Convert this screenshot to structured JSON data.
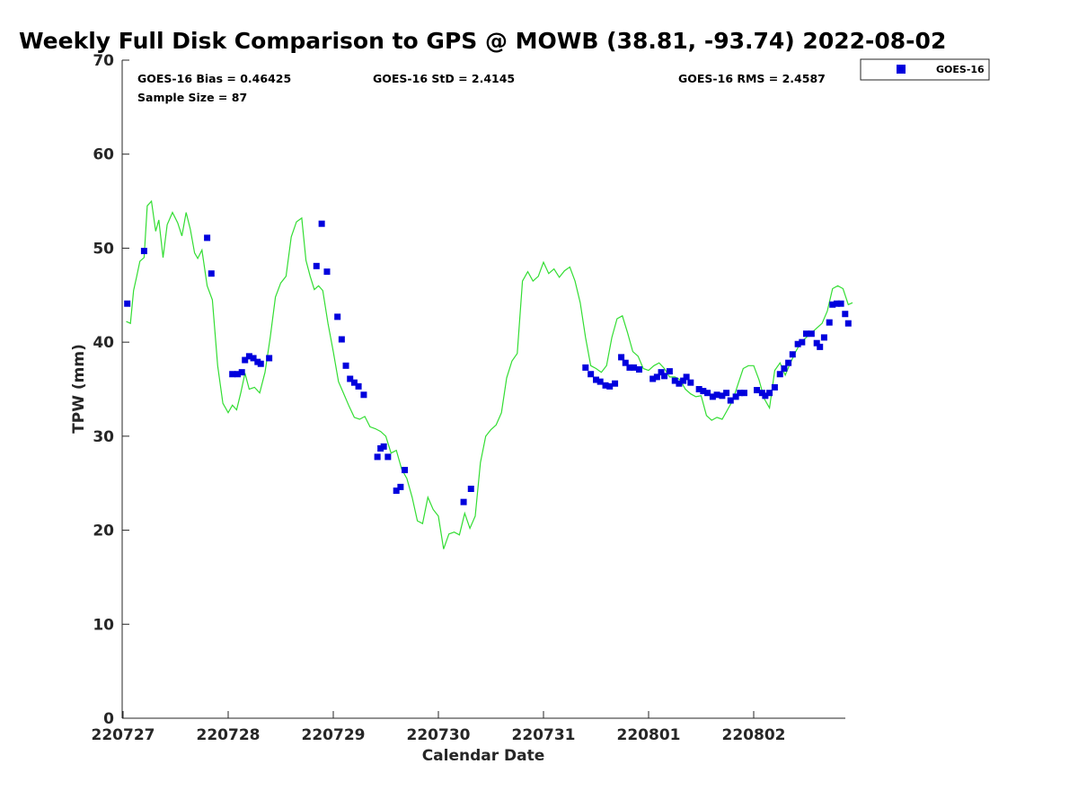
{
  "chart_data": {
    "type": "scatter",
    "title": "Weekly Full Disk Comparison to GPS @ MOWB (38.81, -93.74) 2022-08-02",
    "xlabel": "Calendar Date",
    "ylabel": "TPW (mm)",
    "xlim": [
      0,
      6.95
    ],
    "ylim": [
      0,
      70
    ],
    "x_unit": "days from 220727",
    "y_ticks": [
      0,
      10,
      20,
      30,
      40,
      50,
      60,
      70
    ],
    "x_ticks": [
      {
        "value": 0,
        "label": "220727"
      },
      {
        "value": 1,
        "label": "220728"
      },
      {
        "value": 2,
        "label": "220729"
      },
      {
        "value": 3,
        "label": "220730"
      },
      {
        "value": 4,
        "label": "220731"
      },
      {
        "value": 5,
        "label": "220801"
      },
      {
        "value": 6,
        "label": "220802"
      }
    ],
    "stats": {
      "bias": "GOES-16 Bias = 0.46425",
      "std": "GOES-16 StD = 2.4145",
      "rms": "GOES-16 RMS = 2.4587",
      "sample": "Sample Size = 87"
    },
    "legend": {
      "position": "top-right",
      "entries": [
        "GOES-16"
      ]
    },
    "colors": {
      "goes": "#0000dd",
      "gps": "#33dd33",
      "axis": "#262626"
    },
    "series": [
      {
        "name": "GOES-16",
        "marker": "square",
        "x": [
          0.04,
          0.2,
          0.8,
          0.84,
          1.04,
          1.09,
          1.13,
          1.16,
          1.2,
          1.24,
          1.28,
          1.31,
          1.39,
          1.84,
          1.89,
          1.94,
          2.04,
          2.08,
          2.12,
          2.16,
          2.2,
          2.24,
          2.29,
          2.42,
          2.45,
          2.48,
          2.52,
          2.6,
          2.64,
          2.68,
          3.24,
          3.31,
          4.4,
          4.45,
          4.5,
          4.54,
          4.59,
          4.63,
          4.68,
          4.74,
          4.78,
          4.82,
          4.86,
          4.91,
          5.04,
          5.08,
          5.12,
          5.15,
          5.2,
          5.25,
          5.29,
          5.33,
          5.36,
          5.4,
          5.48,
          5.52,
          5.56,
          5.61,
          5.65,
          5.7,
          5.74,
          5.78,
          5.83,
          5.87,
          5.91,
          6.03,
          6.08,
          6.11,
          6.15,
          6.2,
          6.25,
          6.29,
          6.33,
          6.37,
          6.42,
          6.46,
          6.5,
          6.55,
          6.6,
          6.63,
          6.67,
          6.72,
          6.75,
          6.79,
          6.83,
          6.87,
          6.9
        ],
        "y": [
          44.1,
          49.7,
          51.1,
          47.3,
          36.6,
          36.6,
          36.8,
          38.1,
          38.5,
          38.3,
          37.9,
          37.7,
          38.3,
          48.1,
          52.6,
          47.5,
          42.7,
          40.3,
          37.5,
          36.1,
          35.7,
          35.3,
          34.4,
          27.8,
          28.7,
          28.9,
          27.8,
          24.2,
          24.6,
          26.4,
          23.0,
          24.4,
          37.3,
          36.6,
          36.0,
          35.8,
          35.4,
          35.3,
          35.6,
          38.4,
          37.8,
          37.3,
          37.3,
          37.1,
          36.1,
          36.3,
          36.8,
          36.4,
          36.9,
          35.9,
          35.6,
          35.9,
          36.3,
          35.7,
          35.0,
          34.8,
          34.6,
          34.2,
          34.4,
          34.3,
          34.6,
          33.8,
          34.2,
          34.6,
          34.6,
          34.9,
          34.6,
          34.3,
          34.6,
          35.2,
          36.6,
          37.2,
          37.8,
          38.7,
          39.8,
          40.0,
          40.9,
          40.9,
          39.9,
          39.5,
          40.5,
          42.1,
          44.0,
          44.1,
          44.1,
          43.0,
          42.0
        ]
      },
      {
        "name": "GPS",
        "marker": "line",
        "x": [
          0.03,
          0.07,
          0.1,
          0.13,
          0.16,
          0.2,
          0.23,
          0.27,
          0.31,
          0.34,
          0.38,
          0.42,
          0.47,
          0.52,
          0.56,
          0.6,
          0.64,
          0.68,
          0.71,
          0.75,
          0.8,
          0.85,
          0.9,
          0.95,
          1.0,
          1.04,
          1.08,
          1.12,
          1.16,
          1.2,
          1.25,
          1.3,
          1.35,
          1.4,
          1.45,
          1.5,
          1.55,
          1.6,
          1.65,
          1.7,
          1.74,
          1.78,
          1.82,
          1.86,
          1.9,
          1.95,
          2.0,
          2.05,
          2.1,
          2.15,
          2.2,
          2.25,
          2.3,
          2.35,
          2.4,
          2.45,
          2.5,
          2.55,
          2.6,
          2.65,
          2.7,
          2.75,
          2.8,
          2.85,
          2.9,
          2.95,
          3.0,
          3.05,
          3.1,
          3.15,
          3.2,
          3.25,
          3.3,
          3.35,
          3.4,
          3.45,
          3.5,
          3.55,
          3.6,
          3.65,
          3.7,
          3.75,
          3.8,
          3.85,
          3.9,
          3.95,
          4.0,
          4.05,
          4.1,
          4.15,
          4.2,
          4.25,
          4.3,
          4.35,
          4.4,
          4.45,
          4.5,
          4.55,
          4.6,
          4.65,
          4.7,
          4.75,
          4.8,
          4.85,
          4.9,
          4.95,
          5.0,
          5.05,
          5.1,
          5.15,
          5.2,
          5.25,
          5.3,
          5.35,
          5.4,
          5.45,
          5.5,
          5.55,
          5.6,
          5.65,
          5.7,
          5.75,
          5.8,
          5.85,
          5.9,
          5.95,
          6.0,
          6.05,
          6.1,
          6.15,
          6.2,
          6.25,
          6.3,
          6.35,
          6.4,
          6.45,
          6.5,
          6.55,
          6.6,
          6.65,
          6.7,
          6.75,
          6.8,
          6.85,
          6.9,
          6.94
        ],
        "y": [
          42.2,
          42.0,
          45.5,
          47.0,
          48.6,
          49.0,
          54.5,
          55.0,
          51.8,
          53.0,
          49.0,
          52.5,
          53.8,
          52.7,
          51.3,
          53.8,
          52.0,
          49.5,
          48.9,
          49.8,
          46.0,
          44.5,
          37.5,
          33.5,
          32.5,
          33.3,
          32.8,
          34.6,
          36.7,
          35.0,
          35.2,
          34.6,
          36.8,
          40.5,
          44.8,
          46.3,
          47.0,
          51.2,
          52.8,
          53.2,
          48.7,
          47.0,
          45.6,
          46.0,
          45.5,
          42.0,
          39.0,
          35.8,
          34.5,
          33.2,
          32.0,
          31.8,
          32.1,
          31.0,
          30.8,
          30.5,
          30.0,
          28.2,
          28.5,
          26.5,
          25.5,
          23.5,
          21.0,
          20.7,
          23.5,
          22.2,
          21.5,
          18.0,
          19.6,
          19.8,
          19.5,
          21.8,
          20.2,
          21.5,
          27.2,
          30.0,
          30.7,
          31.2,
          32.5,
          36.2,
          38.0,
          38.8,
          46.5,
          47.5,
          46.5,
          47.0,
          48.5,
          47.3,
          47.8,
          46.9,
          47.6,
          48.0,
          46.5,
          44.2,
          40.5,
          37.5,
          37.2,
          36.8,
          37.5,
          40.5,
          42.5,
          42.8,
          41.0,
          39.0,
          38.5,
          37.2,
          37.0,
          37.5,
          37.8,
          37.2,
          36.3,
          36.3,
          36.0,
          35.0,
          34.5,
          34.2,
          34.3,
          32.2,
          31.7,
          32.0,
          31.8,
          32.8,
          33.8,
          35.5,
          37.2,
          37.5,
          37.5,
          36.0,
          34.0,
          33.0,
          37.0,
          37.8,
          36.5,
          37.8,
          39.0,
          40.0,
          40.5,
          41.0,
          41.5,
          42.0,
          43.3,
          45.7,
          46.0,
          45.7,
          44.0,
          44.2
        ]
      }
    ]
  }
}
